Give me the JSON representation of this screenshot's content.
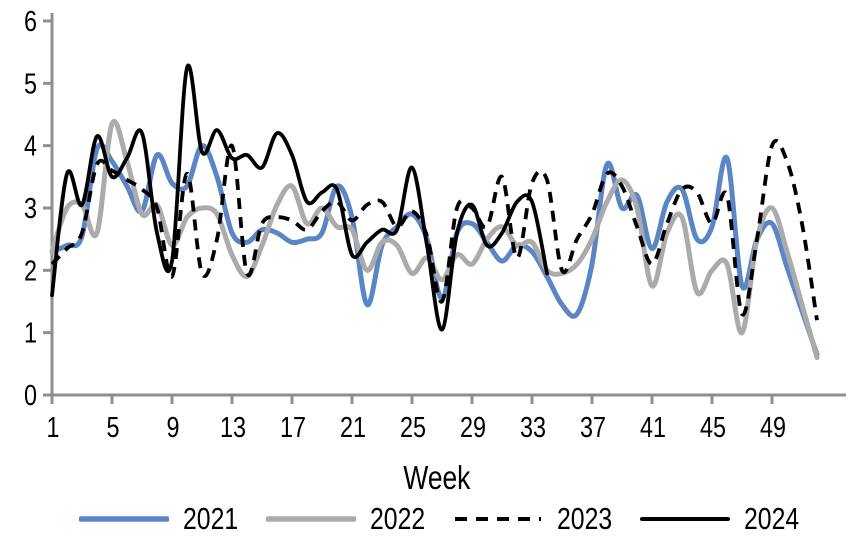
{
  "figure": {
    "background": "#FFFFFF",
    "axis_color": "#8F8F8F",
    "tick_label_color": "#000000"
  },
  "chart_data": {
    "type": "line",
    "title": "",
    "xlabel": "Week",
    "ylabel": "",
    "xlim": [
      1,
      52
    ],
    "ylim": [
      0,
      6
    ],
    "grid": false,
    "legend_position": "bottom",
    "xticks": [
      1,
      5,
      9,
      13,
      17,
      21,
      25,
      29,
      33,
      37,
      41,
      45,
      49
    ],
    "yticks": [
      0,
      1,
      2,
      3,
      4,
      5,
      6
    ],
    "x_unit": "week",
    "x_start": 1,
    "series": [
      {
        "name": "2021",
        "color": "#5B86C5",
        "dash": "solid",
        "values": [
          2.3,
          2.4,
          2.55,
          3.95,
          3.75,
          3.35,
          2.95,
          3.85,
          3.4,
          3.35,
          4.0,
          3.5,
          2.6,
          2.45,
          2.65,
          2.6,
          2.45,
          2.5,
          2.6,
          3.35,
          2.85,
          1.45,
          2.4,
          2.7,
          2.9,
          2.5,
          1.55,
          2.6,
          2.75,
          2.45,
          2.15,
          2.4,
          2.3,
          1.9,
          1.45,
          1.3,
          2.1,
          3.7,
          3.0,
          3.2,
          2.35,
          3.1,
          3.3,
          2.5,
          2.7,
          3.8,
          1.75,
          2.5,
          2.75,
          2.05,
          1.35,
          0.65
        ]
      },
      {
        "name": "2022",
        "color": "#ABABAB",
        "dash": "solid",
        "values": [
          2.3,
          3.0,
          3.05,
          2.6,
          4.35,
          3.75,
          2.9,
          3.05,
          2.4,
          2.85,
          3.0,
          2.9,
          2.25,
          1.9,
          2.4,
          3.05,
          3.35,
          2.75,
          3.0,
          2.7,
          2.65,
          2.0,
          2.45,
          2.4,
          1.95,
          2.2,
          1.85,
          2.25,
          2.1,
          2.5,
          2.7,
          2.4,
          2.45,
          2.0,
          1.95,
          2.1,
          2.5,
          3.1,
          3.45,
          3.0,
          1.75,
          2.6,
          2.85,
          1.65,
          2.0,
          2.1,
          1.0,
          2.5,
          3.0,
          2.3,
          1.45,
          0.6
        ]
      },
      {
        "name": "2023",
        "color": "#000000",
        "dash": "dashed",
        "values": [
          2.1,
          2.35,
          2.6,
          3.7,
          3.6,
          3.45,
          3.3,
          3.0,
          1.9,
          3.55,
          1.95,
          2.5,
          4.0,
          1.95,
          2.75,
          2.85,
          2.8,
          2.65,
          2.95,
          3.1,
          2.8,
          3.05,
          3.1,
          2.7,
          2.95,
          2.55,
          1.5,
          3.0,
          3.0,
          2.7,
          3.5,
          2.2,
          3.4,
          3.45,
          2.0,
          2.5,
          2.9,
          3.55,
          3.35,
          2.7,
          2.1,
          2.75,
          3.3,
          3.25,
          2.75,
          3.2,
          1.3,
          2.5,
          4.0,
          3.75,
          2.75,
          1.2
        ]
      },
      {
        "name": "2024",
        "color": "#000000",
        "dash": "solid",
        "values": [
          1.6,
          3.55,
          3.05,
          4.15,
          3.5,
          3.8,
          4.2,
          2.6,
          2.15,
          5.25,
          3.9,
          4.25,
          3.8,
          3.85,
          3.65,
          4.2,
          3.85,
          3.1,
          3.25,
          3.3,
          2.25,
          2.45,
          2.65,
          2.65,
          3.65,
          2.4,
          1.05,
          2.6,
          3.05,
          2.4,
          2.6,
          3.1,
          3.1,
          1.95
        ]
      }
    ]
  }
}
